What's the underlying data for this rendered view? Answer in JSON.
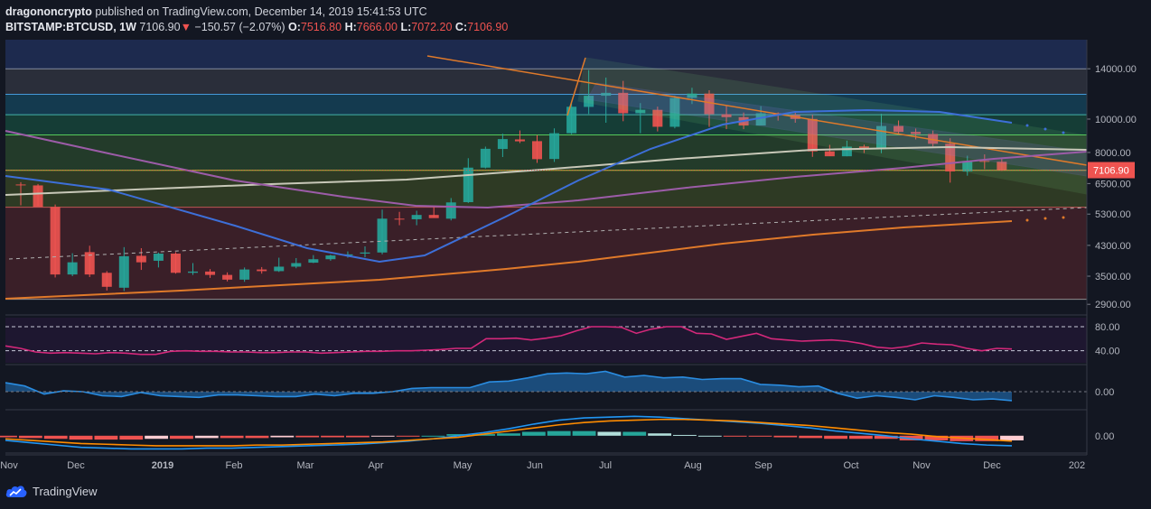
{
  "header": {
    "publisher": "dragononcrypto",
    "published_text": "published on TradingView.com, December 14, 2019 15:41:53 UTC",
    "symbol": "BITSTAMP:BTCUSD, 1W",
    "last": "7106.90",
    "arrow": "▼",
    "change": "−150.57 (−2.07%)",
    "o_label": "O:",
    "o_val": "7516.80",
    "h_label": "H:",
    "h_val": "7666.00",
    "l_label": "L:",
    "l_val": "7072.20",
    "c_label": "C:",
    "c_val": "7106.90"
  },
  "brand": {
    "name": "TradingView",
    "logo_icon": "tradingview-cloud-icon"
  },
  "colors": {
    "up": "#26a69a",
    "down": "#ef5350",
    "bg": "#131722",
    "price_badge": "#ef5350"
  },
  "chart_data": [
    {
      "type": "candlestick",
      "scale": "log",
      "price_axis_ticks": [
        "14000.00",
        "10000.00",
        "8000.00",
        "6500.00",
        "5300.00",
        "4300.00",
        "3500.00",
        "2900.00"
      ],
      "price_axis_values": [
        14000,
        10000,
        8000,
        6500,
        5300,
        4300,
        3500,
        2900
      ],
      "ylim": [
        2750,
        17000
      ],
      "last_price_label": "7106.90",
      "time_axis_labels": [
        "Nov",
        "Dec",
        "2019",
        "Feb",
        "Mar",
        "Apr",
        "May",
        "Jun",
        "Jul",
        "Aug",
        "Sep",
        "Oct",
        "Nov",
        "Dec",
        "202"
      ],
      "candles": [
        {
          "o": 6460,
          "h": 6560,
          "l": 5620,
          "c": 6430
        },
        {
          "o": 6420,
          "h": 6480,
          "l": 5600,
          "c": 5560
        },
        {
          "o": 5560,
          "h": 5650,
          "l": 3470,
          "c": 3540
        },
        {
          "o": 3540,
          "h": 4080,
          "l": 3500,
          "c": 3840
        },
        {
          "o": 4110,
          "h": 4290,
          "l": 3480,
          "c": 3540
        },
        {
          "o": 3580,
          "h": 3620,
          "l": 3180,
          "c": 3260
        },
        {
          "o": 3240,
          "h": 4250,
          "l": 3170,
          "c": 4000
        },
        {
          "o": 4010,
          "h": 4220,
          "l": 3650,
          "c": 3840
        },
        {
          "o": 3880,
          "h": 4100,
          "l": 3710,
          "c": 4070
        },
        {
          "o": 4070,
          "h": 4110,
          "l": 3560,
          "c": 3580
        },
        {
          "o": 3580,
          "h": 3820,
          "l": 3530,
          "c": 3610
        },
        {
          "o": 3610,
          "h": 3670,
          "l": 3460,
          "c": 3530
        },
        {
          "o": 3530,
          "h": 3590,
          "l": 3380,
          "c": 3420
        },
        {
          "o": 3420,
          "h": 3710,
          "l": 3370,
          "c": 3660
        },
        {
          "o": 3660,
          "h": 3720,
          "l": 3560,
          "c": 3620
        },
        {
          "o": 3620,
          "h": 3960,
          "l": 3600,
          "c": 3730
        },
        {
          "o": 3730,
          "h": 3950,
          "l": 3690,
          "c": 3820
        },
        {
          "o": 3830,
          "h": 4030,
          "l": 3820,
          "c": 3920
        },
        {
          "o": 3920,
          "h": 4040,
          "l": 3880,
          "c": 4020
        },
        {
          "o": 4020,
          "h": 4130,
          "l": 3960,
          "c": 4050
        },
        {
          "o": 4070,
          "h": 4270,
          "l": 3970,
          "c": 4100
        },
        {
          "o": 4100,
          "h": 5460,
          "l": 4050,
          "c": 5140
        },
        {
          "o": 5140,
          "h": 5380,
          "l": 4920,
          "c": 5110
        },
        {
          "o": 5120,
          "h": 5420,
          "l": 4920,
          "c": 5270
        },
        {
          "o": 5270,
          "h": 5600,
          "l": 5180,
          "c": 5160
        },
        {
          "o": 5140,
          "h": 5900,
          "l": 5080,
          "c": 5730
        },
        {
          "o": 5740,
          "h": 7700,
          "l": 5710,
          "c": 7230
        },
        {
          "o": 7230,
          "h": 8320,
          "l": 7190,
          "c": 8200
        },
        {
          "o": 8190,
          "h": 9070,
          "l": 7760,
          "c": 8750
        },
        {
          "o": 8730,
          "h": 9270,
          "l": 8520,
          "c": 8620
        },
        {
          "o": 8630,
          "h": 8990,
          "l": 7460,
          "c": 7650
        },
        {
          "o": 7660,
          "h": 9400,
          "l": 7510,
          "c": 9100
        },
        {
          "o": 9100,
          "h": 11200,
          "l": 9040,
          "c": 10860
        },
        {
          "o": 10850,
          "h": 13880,
          "l": 10350,
          "c": 11690
        },
        {
          "o": 11690,
          "h": 13200,
          "l": 9760,
          "c": 11920
        },
        {
          "o": 11920,
          "h": 12910,
          "l": 9860,
          "c": 10400
        },
        {
          "o": 10400,
          "h": 11130,
          "l": 9100,
          "c": 10640
        },
        {
          "o": 10640,
          "h": 10870,
          "l": 9210,
          "c": 9500
        },
        {
          "o": 9500,
          "h": 11690,
          "l": 9400,
          "c": 11520
        },
        {
          "o": 11520,
          "h": 12330,
          "l": 11060,
          "c": 11860
        },
        {
          "o": 11860,
          "h": 12130,
          "l": 9490,
          "c": 10330
        },
        {
          "o": 10330,
          "h": 10950,
          "l": 9350,
          "c": 10130
        },
        {
          "o": 10130,
          "h": 10450,
          "l": 9350,
          "c": 9580
        },
        {
          "o": 9580,
          "h": 10900,
          "l": 9620,
          "c": 10400
        },
        {
          "o": 10400,
          "h": 10460,
          "l": 9900,
          "c": 10280
        },
        {
          "o": 10280,
          "h": 10450,
          "l": 9760,
          "c": 10010
        },
        {
          "o": 10010,
          "h": 10300,
          "l": 7770,
          "c": 8060
        },
        {
          "o": 8060,
          "h": 8420,
          "l": 7820,
          "c": 7800
        },
        {
          "o": 7800,
          "h": 8660,
          "l": 7800,
          "c": 8320
        },
        {
          "o": 8330,
          "h": 8430,
          "l": 7970,
          "c": 8240
        },
        {
          "o": 8240,
          "h": 10370,
          "l": 7960,
          "c": 9550
        },
        {
          "o": 9550,
          "h": 9910,
          "l": 9060,
          "c": 9180
        },
        {
          "o": 9180,
          "h": 9390,
          "l": 8730,
          "c": 9050
        },
        {
          "o": 9050,
          "h": 9260,
          "l": 8330,
          "c": 8480
        },
        {
          "o": 8480,
          "h": 8800,
          "l": 6540,
          "c": 7050
        },
        {
          "o": 7050,
          "h": 7830,
          "l": 6850,
          "c": 7560
        },
        {
          "o": 7560,
          "h": 7900,
          "l": 7160,
          "c": 7520
        },
        {
          "o": 7520,
          "h": 7670,
          "l": 7070,
          "c": 7110
        }
      ]
    },
    {
      "type": "line",
      "name": "",
      "levels": [
        80,
        40
      ],
      "axis_ticks": [
        "80.00",
        "40.00"
      ],
      "ylim": [
        20,
        95
      ],
      "values": [
        48,
        44,
        38,
        36,
        37,
        36,
        35,
        37,
        36,
        34,
        34,
        39,
        40,
        39,
        39,
        38,
        38,
        37,
        37,
        38,
        38,
        36,
        37,
        38,
        39,
        39,
        40,
        40,
        41,
        42,
        44,
        44,
        60,
        60,
        61,
        58,
        61,
        65,
        73,
        80,
        80,
        79,
        69,
        76,
        80,
        80,
        69,
        68,
        59,
        64,
        69,
        60,
        58,
        56,
        57,
        58,
        56,
        52,
        46,
        44,
        47,
        53,
        51,
        50,
        44,
        40,
        44,
        43
      ]
    },
    {
      "type": "area",
      "name": "",
      "axis_ticks": [
        "0.00"
      ],
      "ylim": [
        -1,
        1.5
      ],
      "values": [
        0.55,
        0.35,
        -0.15,
        0.05,
        0.0,
        -0.25,
        -0.3,
        -0.05,
        -0.25,
        -0.3,
        -0.35,
        -0.2,
        -0.2,
        -0.25,
        -0.3,
        -0.3,
        -0.15,
        -0.25,
        -0.1,
        -0.1,
        0.0,
        0.2,
        0.25,
        0.25,
        0.25,
        0.6,
        0.65,
        0.85,
        1.1,
        1.15,
        1.1,
        1.25,
        0.9,
        1.0,
        0.85,
        0.9,
        0.75,
        0.8,
        0.8,
        0.45,
        0.4,
        0.3,
        0.35,
        -0.1,
        -0.4,
        -0.25,
        -0.35,
        -0.5,
        -0.25,
        -0.35,
        -0.5,
        -0.45,
        -0.55
      ]
    },
    {
      "type": "macd",
      "axis_ticks": [
        "0.00"
      ],
      "ylim": [
        -1,
        1.5
      ],
      "macd": [
        -0.3,
        -0.45,
        -0.6,
        -0.75,
        -0.8,
        -0.85,
        -0.85,
        -0.85,
        -0.8,
        -0.8,
        -0.75,
        -0.7,
        -0.65,
        -0.6,
        -0.55,
        -0.45,
        -0.35,
        -0.2,
        0.0,
        0.2,
        0.45,
        0.75,
        1.0,
        1.15,
        1.2,
        1.25,
        1.2,
        1.1,
        1.0,
        0.9,
        0.8,
        0.65,
        0.5,
        0.3,
        0.15,
        0.0,
        -0.2,
        -0.35,
        -0.5,
        -0.6,
        -0.65
      ],
      "signal": [
        -0.2,
        -0.3,
        -0.4,
        -0.5,
        -0.55,
        -0.6,
        -0.65,
        -0.65,
        -0.65,
        -0.65,
        -0.6,
        -0.6,
        -0.55,
        -0.5,
        -0.45,
        -0.4,
        -0.3,
        -0.2,
        -0.1,
        0.1,
        0.3,
        0.5,
        0.7,
        0.85,
        0.95,
        1.0,
        1.05,
        1.05,
        1.0,
        0.95,
        0.85,
        0.75,
        0.65,
        0.5,
        0.35,
        0.2,
        0.1,
        -0.05,
        -0.15,
        -0.25,
        -0.35
      ],
      "hist": [
        -0.1,
        -0.15,
        -0.2,
        -0.25,
        -0.25,
        -0.25,
        -0.2,
        -0.2,
        -0.15,
        -0.15,
        -0.15,
        -0.1,
        -0.1,
        -0.1,
        -0.1,
        -0.05,
        -0.05,
        0.0,
        0.1,
        0.1,
        0.15,
        0.25,
        0.3,
        0.3,
        0.25,
        0.25,
        0.15,
        0.05,
        0.0,
        -0.05,
        -0.05,
        -0.1,
        -0.15,
        -0.2,
        -0.2,
        -0.2,
        -0.3,
        -0.3,
        -0.35,
        -0.35,
        -0.3
      ]
    }
  ]
}
